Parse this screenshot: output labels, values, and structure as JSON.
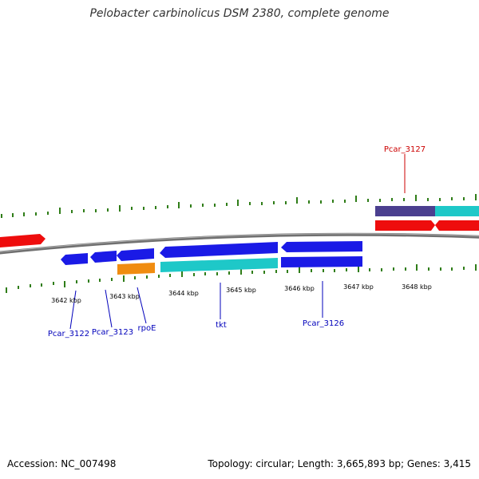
{
  "title": "Pelobacter carbinolicus DSM 2380, complete genome",
  "footer": {
    "accession": "Accession: NC_007498",
    "topology": "Topology: circular; Length: 3,665,893 bp; Genes: 3,415"
  },
  "colors": {
    "backbone": "#7f7f7f",
    "tick": "#2f7d18",
    "reverse_gene": "#1a1ae6",
    "forward_gene": "#ee0d0d",
    "cds_cyan": "#1ec8c8",
    "rna_orange": "#f08c10",
    "feature_purple": "#4b3f8f",
    "label_blue": "#0000bb",
    "label_red": "#cc0000"
  },
  "kbp_labels": [
    "3642 kbp",
    "3643 kbp",
    "3644 kbp",
    "3645 kbp",
    "3646 kbp",
    "3647 kbp",
    "3648 kbp"
  ],
  "gene_labels": [
    "Pcar_3122",
    "Pcar_3123",
    "rpoE",
    "tkt",
    "Pcar_3126",
    "Pcar_3127"
  ]
}
